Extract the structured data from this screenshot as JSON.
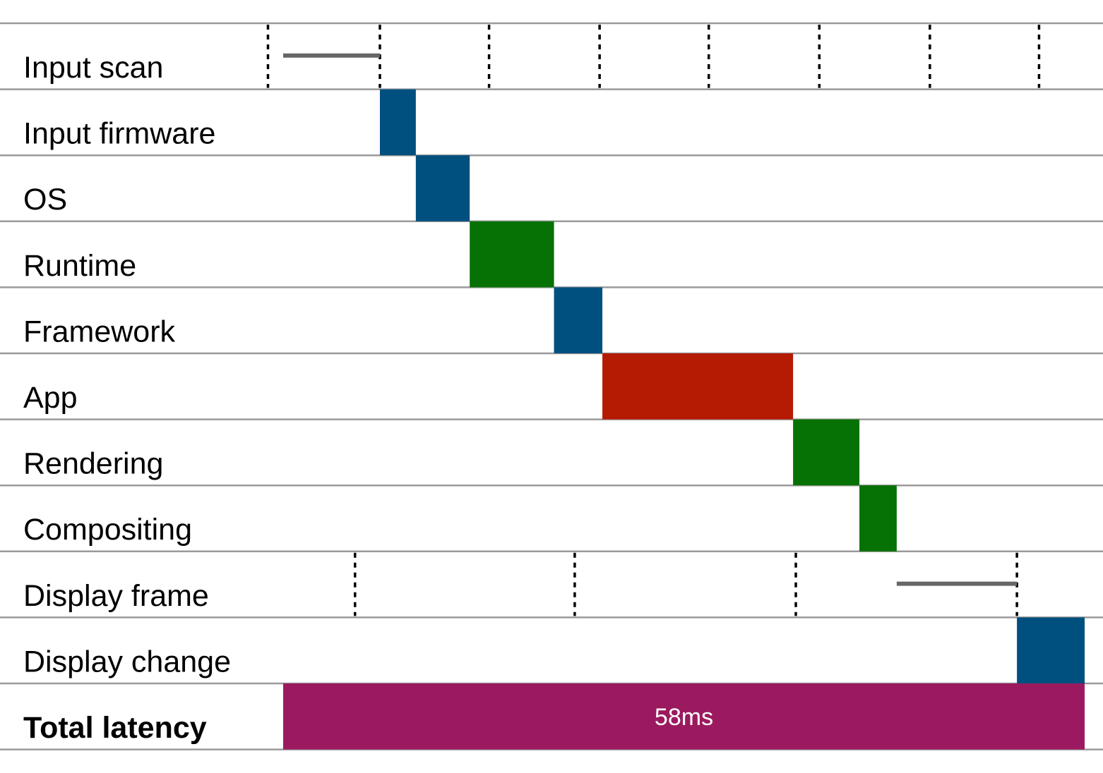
{
  "chart_data": {
    "type": "bar",
    "subtype": "gantt",
    "unit": "ms",
    "xlim": [
      0,
      58
    ],
    "title": "",
    "xlabel": "",
    "ylabel": "",
    "grid": false,
    "legend": "none",
    "colors": {
      "blue": "#00507f",
      "green": "#067205",
      "red": "#b51a02",
      "magenta": "#9b1a5f",
      "wait": "#666666",
      "row_line": "#9a9a9a"
    },
    "rows": [
      {
        "label": "Input scan",
        "bold": false
      },
      {
        "label": "Input firmware",
        "bold": false
      },
      {
        "label": "OS",
        "bold": false
      },
      {
        "label": "Runtime",
        "bold": false
      },
      {
        "label": "Framework",
        "bold": false
      },
      {
        "label": "App",
        "bold": false
      },
      {
        "label": "Rendering",
        "bold": false
      },
      {
        "label": "Compositing",
        "bold": false
      },
      {
        "label": "Display frame",
        "bold": false
      },
      {
        "label": "Display change",
        "bold": false
      },
      {
        "label": "Total latency",
        "bold": true
      }
    ],
    "segments": [
      {
        "row": 0,
        "kind": "wait",
        "start": 0,
        "end": 7.0
      },
      {
        "row": 1,
        "kind": "bar",
        "start": 7.0,
        "end": 9.6,
        "color": "blue"
      },
      {
        "row": 2,
        "kind": "bar",
        "start": 9.6,
        "end": 13.5,
        "color": "blue"
      },
      {
        "row": 3,
        "kind": "bar",
        "start": 13.5,
        "end": 19.6,
        "color": "green"
      },
      {
        "row": 4,
        "kind": "bar",
        "start": 19.6,
        "end": 23.1,
        "color": "blue"
      },
      {
        "row": 5,
        "kind": "bar",
        "start": 23.1,
        "end": 36.9,
        "color": "red"
      },
      {
        "row": 6,
        "kind": "bar",
        "start": 36.9,
        "end": 41.7,
        "color": "green"
      },
      {
        "row": 7,
        "kind": "bar",
        "start": 41.7,
        "end": 44.4,
        "color": "green"
      },
      {
        "row": 8,
        "kind": "wait",
        "start": 44.4,
        "end": 53.1
      },
      {
        "row": 9,
        "kind": "bar",
        "start": 53.1,
        "end": 58.0,
        "color": "blue"
      },
      {
        "row": 10,
        "kind": "bar",
        "start": 0,
        "end": 58.0,
        "color": "magenta",
        "label": "58ms"
      }
    ],
    "tick_rows": [
      {
        "row": 0,
        "positions": [
          -1.1,
          7.0,
          14.9,
          22.9,
          30.8,
          38.8,
          46.8,
          54.7
        ]
      },
      {
        "row": 8,
        "positions": [
          5.2,
          21.1,
          37.1,
          53.1
        ]
      }
    ]
  }
}
